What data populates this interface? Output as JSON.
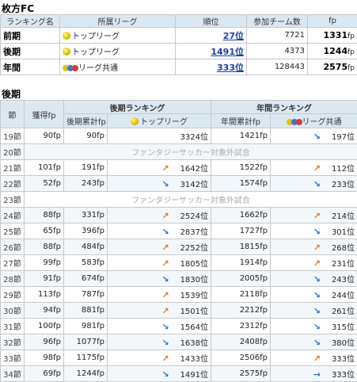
{
  "club_title": "枚方FC",
  "summary": {
    "headers": [
      "ランキング名",
      "所属リーグ",
      "順位",
      "参加チーム数",
      "fp"
    ],
    "rows": [
      {
        "label": "前期",
        "league": "トップリーグ",
        "league_icon": "single-ball",
        "rank": "27位",
        "teams": "7721",
        "fp_num": "1331",
        "fp_unit": "fp"
      },
      {
        "label": "後期",
        "league": "トップリーグ",
        "league_icon": "single-ball",
        "rank": "1491位",
        "teams": "4373",
        "fp_num": "1244",
        "fp_unit": "fp"
      },
      {
        "label": "年間",
        "league": "リーグ共通",
        "league_icon": "multi-ball",
        "rank": "333位",
        "teams": "128443",
        "fp_num": "2575",
        "fp_unit": "fp"
      }
    ]
  },
  "season_title": "後期",
  "main": {
    "group_headers": {
      "kouki": "後期ランキング",
      "nenkan": "年間ランキング"
    },
    "headers": {
      "setsu": "節",
      "kakutoku": "獲得fp",
      "kouki_cum": "後期累計fp",
      "kouki_league": "トップリーグ",
      "nenkan_cum": "年間累計fp",
      "nenkan_league": "リーグ共通"
    },
    "excluded_text": "ファンタジーサッカー対象外試合",
    "rows": [
      {
        "setsu": "19節",
        "gain": "90fp",
        "kcum": "90fp",
        "krank": "3324位",
        "kdir": "",
        "ncum": "1421fp",
        "nrank": "197位",
        "ndir": "down"
      },
      {
        "setsu": "20節",
        "excluded": true
      },
      {
        "setsu": "21節",
        "gain": "101fp",
        "kcum": "191fp",
        "krank": "1642位",
        "kdir": "up",
        "ncum": "1522fp",
        "nrank": "112位",
        "ndir": "up"
      },
      {
        "setsu": "22節",
        "gain": "52fp",
        "kcum": "243fp",
        "krank": "3142位",
        "kdir": "down",
        "ncum": "1574fp",
        "nrank": "233位",
        "ndir": "down"
      },
      {
        "setsu": "23節",
        "excluded": true
      },
      {
        "setsu": "24節",
        "gain": "88fp",
        "kcum": "331fp",
        "krank": "2524位",
        "kdir": "up",
        "ncum": "1662fp",
        "nrank": "214位",
        "ndir": "up"
      },
      {
        "setsu": "25節",
        "gain": "65fp",
        "kcum": "396fp",
        "krank": "2837位",
        "kdir": "down",
        "ncum": "1727fp",
        "nrank": "301位",
        "ndir": "down"
      },
      {
        "setsu": "26節",
        "gain": "88fp",
        "kcum": "484fp",
        "krank": "2252位",
        "kdir": "up",
        "ncum": "1815fp",
        "nrank": "268位",
        "ndir": "up"
      },
      {
        "setsu": "27節",
        "gain": "99fp",
        "kcum": "583fp",
        "krank": "1805位",
        "kdir": "up",
        "ncum": "1914fp",
        "nrank": "231位",
        "ndir": "up"
      },
      {
        "setsu": "28節",
        "gain": "91fp",
        "kcum": "674fp",
        "krank": "1830位",
        "kdir": "down",
        "ncum": "2005fp",
        "nrank": "243位",
        "ndir": "down"
      },
      {
        "setsu": "29節",
        "gain": "113fp",
        "kcum": "787fp",
        "krank": "1539位",
        "kdir": "up",
        "ncum": "2118fp",
        "nrank": "244位",
        "ndir": "down"
      },
      {
        "setsu": "30節",
        "gain": "94fp",
        "kcum": "881fp",
        "krank": "1501位",
        "kdir": "up",
        "ncum": "2212fp",
        "nrank": "261位",
        "ndir": "down"
      },
      {
        "setsu": "31節",
        "gain": "100fp",
        "kcum": "981fp",
        "krank": "1564位",
        "kdir": "down",
        "ncum": "2312fp",
        "nrank": "315位",
        "ndir": "down"
      },
      {
        "setsu": "32節",
        "gain": "96fp",
        "kcum": "1077fp",
        "krank": "1638位",
        "kdir": "down",
        "ncum": "2408fp",
        "nrank": "380位",
        "ndir": "down"
      },
      {
        "setsu": "33節",
        "gain": "98fp",
        "kcum": "1175fp",
        "krank": "1433位",
        "kdir": "up",
        "ncum": "2506fp",
        "nrank": "333位",
        "ndir": "up"
      },
      {
        "setsu": "34節",
        "gain": "69fp",
        "kcum": "1244fp",
        "krank": "1491位",
        "kdir": "down",
        "ncum": "2575fp",
        "nrank": "333位",
        "ndir": "flat"
      }
    ]
  },
  "colors": {
    "header_bg": "#dbe8f2",
    "alt_row": "#f2f7fb",
    "link": "#1a3fa6",
    "arrow_up": "#e07a00",
    "arrow_down": "#2a72c8"
  }
}
